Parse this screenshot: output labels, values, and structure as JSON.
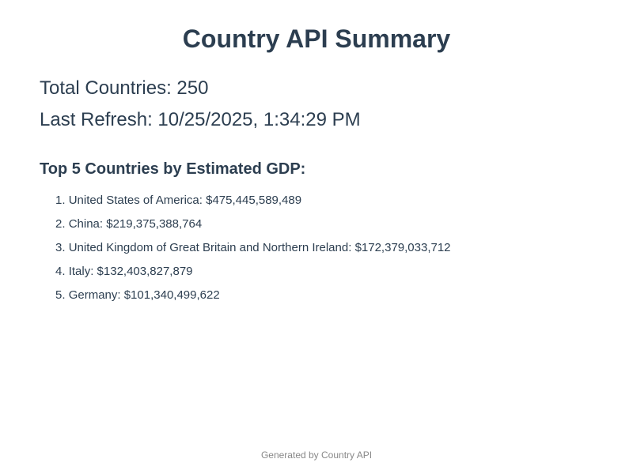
{
  "header": {
    "title": "Country API Summary"
  },
  "stats": {
    "total_label": "Total Countries: ",
    "total_value": "250",
    "refresh_label": "Last Refresh: ",
    "refresh_value": "10/25/2025, 1:34:29 PM"
  },
  "top_gdp": {
    "heading": "Top 5 Countries by Estimated GDP:",
    "items": [
      {
        "rank": "1.",
        "country": "United States of America",
        "gdp": "$475,445,589,489"
      },
      {
        "rank": "2.",
        "country": "China",
        "gdp": "$219,375,388,764"
      },
      {
        "rank": "3.",
        "country": "United Kingdom of Great Britain and Northern Ireland",
        "gdp": "$172,379,033,712"
      },
      {
        "rank": "4.",
        "country": "Italy",
        "gdp": "$132,403,827,879"
      },
      {
        "rank": "5.",
        "country": "Germany",
        "gdp": "$101,340,499,622"
      }
    ]
  },
  "footer": {
    "text": "Generated by Country API"
  },
  "colors": {
    "text": "#2c3e50",
    "footer_text": "#888888",
    "background": "#ffffff"
  }
}
